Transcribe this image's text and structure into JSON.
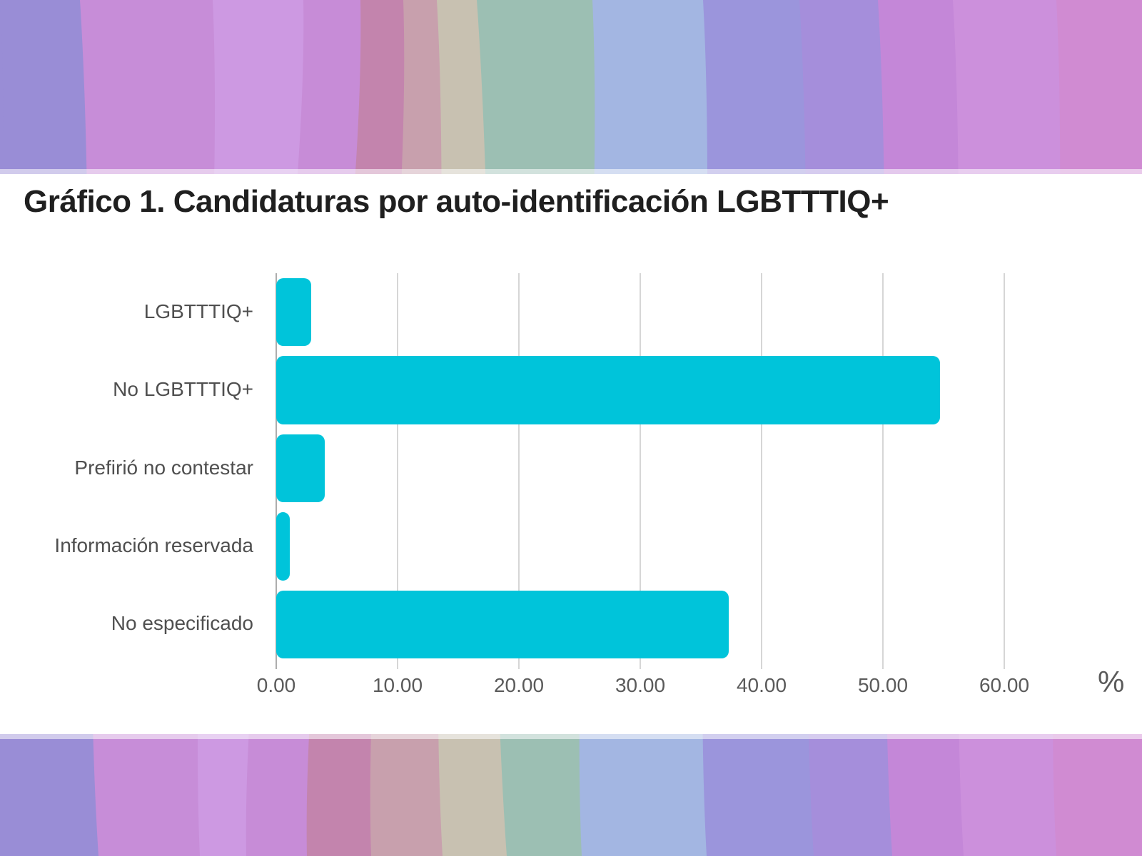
{
  "title": "Gráfico 1. Candidaturas por auto-identificación LGBTTTIQ+",
  "chart_data": {
    "type": "bar",
    "orientation": "horizontal",
    "title": "Gráfico 1. Candidaturas por auto-identificación LGBTTTIQ+",
    "categories": [
      "LGBTTTIQ+",
      "No LGBTTTIQ+",
      "Prefirió no contestar",
      "Información reservada",
      "No especificado"
    ],
    "values": [
      2.9,
      54.7,
      4.0,
      1.1,
      37.3
    ],
    "unit_label": "%",
    "xlim": [
      0,
      60
    ],
    "xticks": [
      {
        "value": 0,
        "label": "0.00"
      },
      {
        "value": 10,
        "label": "10.00"
      },
      {
        "value": 20,
        "label": "20.00"
      },
      {
        "value": 30,
        "label": "30.00"
      },
      {
        "value": 40,
        "label": "40.00"
      },
      {
        "value": 50,
        "label": "50.00"
      },
      {
        "value": 60,
        "label": "60.00"
      }
    ],
    "grid": "vertical",
    "legend": "none"
  },
  "colors": {
    "bar": "#00c4da",
    "gridline": "#d6d6d6",
    "axis_line": "#adadad",
    "title_text": "#1f1f1f",
    "category_text": "#4f4f4f",
    "tick_text": "#5a5a5a",
    "panel_background": "#ffffff",
    "background_stripes": [
      "#998dd6",
      "#c78dd8",
      "#cd99e2",
      "#c78cd7",
      "#c384ad",
      "#c8a0ad",
      "#c8c1b1",
      "#9cbfb3",
      "#a3b6e2",
      "#9b95dc",
      "#a58edb",
      "#c487d8",
      "#cc90dc",
      "#d08bd2"
    ]
  }
}
